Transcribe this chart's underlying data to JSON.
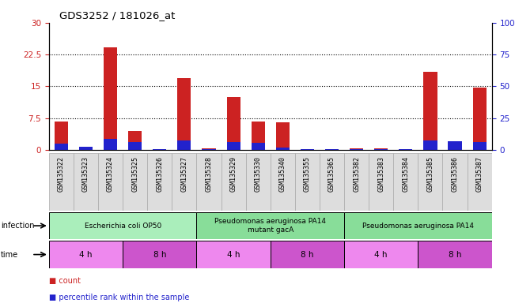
{
  "title": "GDS3252 / 181026_at",
  "samples": [
    "GSM135322",
    "GSM135323",
    "GSM135324",
    "GSM135325",
    "GSM135326",
    "GSM135327",
    "GSM135328",
    "GSM135329",
    "GSM135330",
    "GSM135340",
    "GSM135355",
    "GSM135365",
    "GSM135382",
    "GSM135383",
    "GSM135384",
    "GSM135385",
    "GSM135386",
    "GSM135387"
  ],
  "count_values": [
    6.8,
    0.5,
    24.2,
    4.5,
    0.2,
    17.0,
    0.3,
    12.5,
    6.8,
    6.6,
    0.2,
    0.2,
    0.4,
    0.3,
    0.2,
    18.5,
    1.8,
    14.8
  ],
  "percentile_values": [
    5.0,
    2.5,
    9.0,
    6.0,
    0.5,
    7.5,
    0.5,
    6.0,
    5.5,
    2.0,
    0.5,
    0.5,
    0.5,
    0.5,
    0.5,
    7.5,
    7.0,
    6.5
  ],
  "ylim_left": [
    0,
    30
  ],
  "ylim_right": [
    0,
    100
  ],
  "yticks_left": [
    0,
    7.5,
    15,
    22.5,
    30
  ],
  "ytick_labels_left": [
    "0",
    "7.5",
    "15",
    "22.5",
    "30"
  ],
  "yticks_right": [
    0,
    25,
    50,
    75,
    100
  ],
  "ytick_labels_right": [
    "0",
    "25",
    "50",
    "75",
    "100%"
  ],
  "bar_color_count": "#cc2222",
  "bar_color_percentile": "#2222cc",
  "infection_groups": [
    {
      "label": "Escherichia coli OP50",
      "start": 0,
      "end": 6,
      "color": "#aaeebb"
    },
    {
      "label": "Pseudomonas aeruginosa PA14\nmutant gacA",
      "start": 6,
      "end": 12,
      "color": "#88dd99"
    },
    {
      "label": "Pseudomonas aeruginosa PA14",
      "start": 12,
      "end": 18,
      "color": "#88dd99"
    }
  ],
  "time_groups": [
    {
      "label": "4 h",
      "start": 0,
      "end": 3,
      "color": "#ee88ee"
    },
    {
      "label": "8 h",
      "start": 3,
      "end": 6,
      "color": "#cc55cc"
    },
    {
      "label": "4 h",
      "start": 6,
      "end": 9,
      "color": "#ee88ee"
    },
    {
      "label": "8 h",
      "start": 9,
      "end": 12,
      "color": "#cc55cc"
    },
    {
      "label": "4 h",
      "start": 12,
      "end": 15,
      "color": "#ee88ee"
    },
    {
      "label": "8 h",
      "start": 15,
      "end": 18,
      "color": "#cc55cc"
    }
  ],
  "legend_items": [
    {
      "label": "count",
      "color": "#cc2222"
    },
    {
      "label": "percentile rank within the sample",
      "color": "#2222cc"
    }
  ],
  "infection_label": "infection",
  "time_label": "time",
  "bg_color": "#ffffff"
}
